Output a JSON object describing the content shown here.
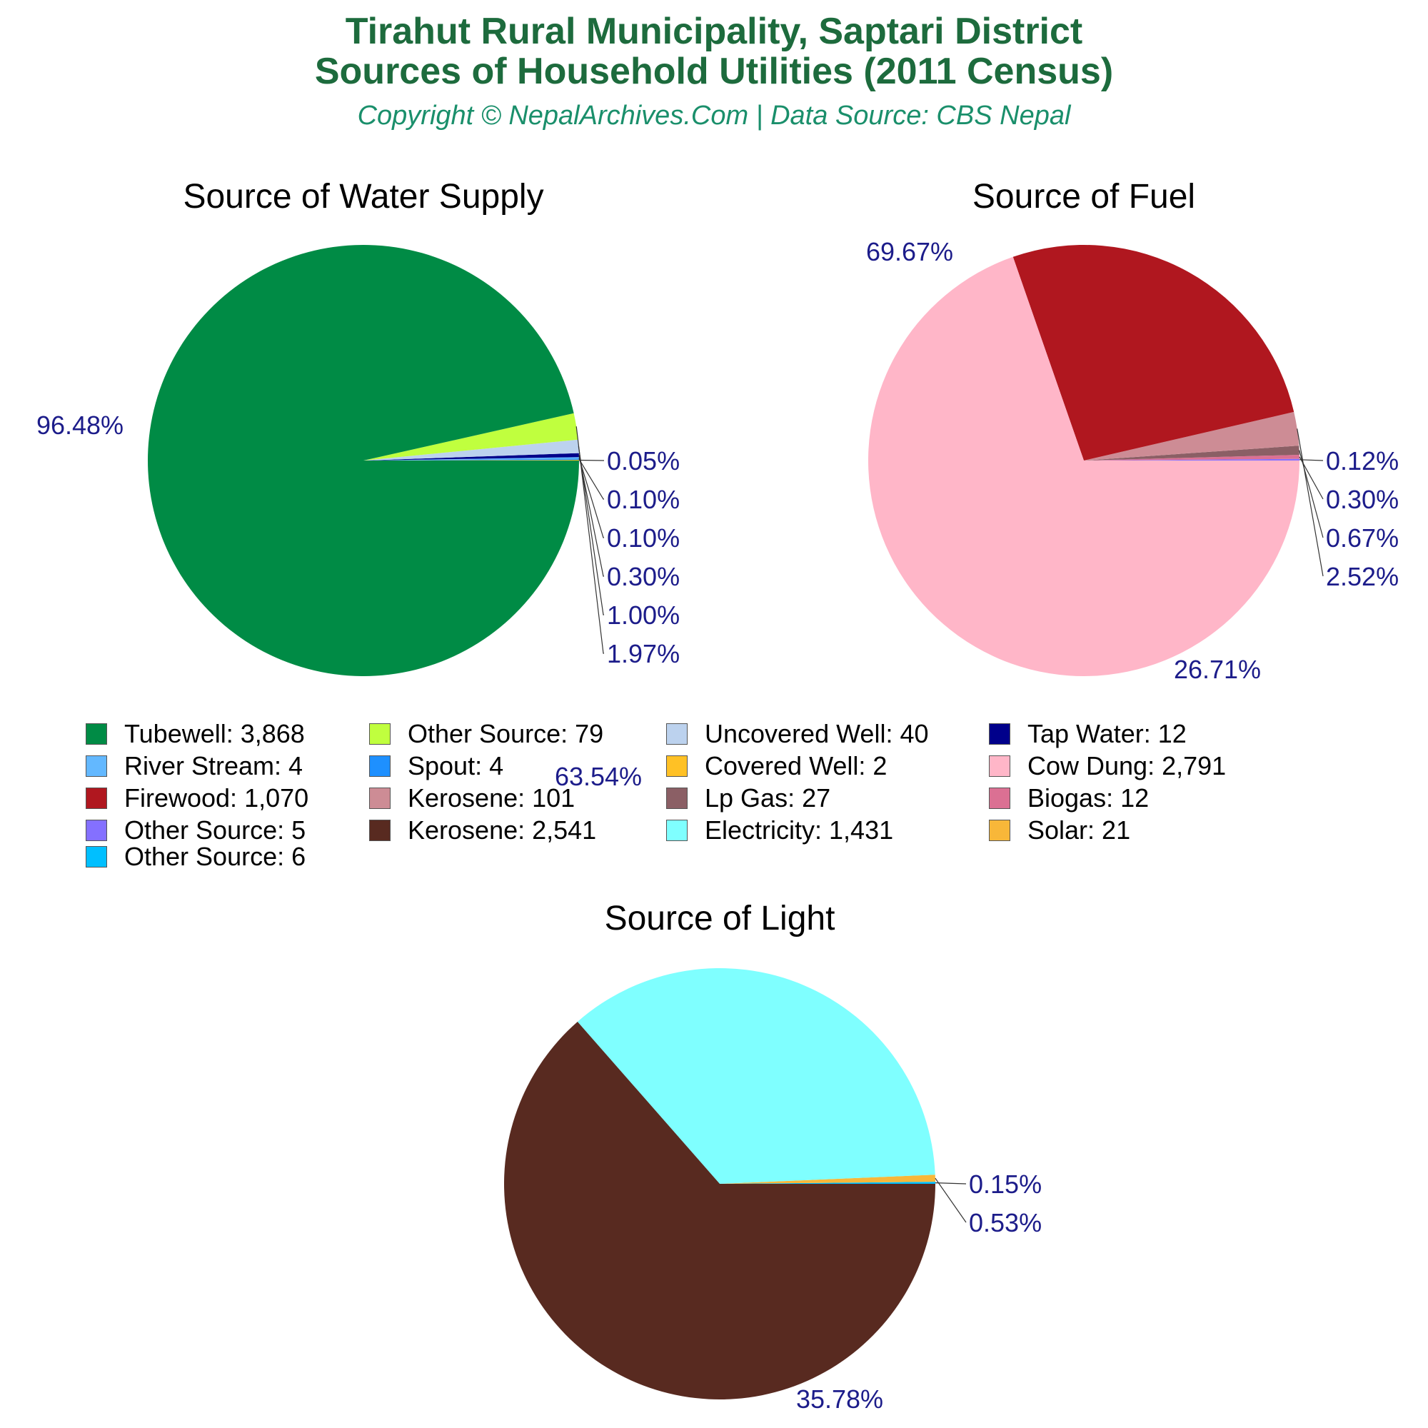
{
  "header": {
    "title_line1": "Tirahut Rural Municipality, Saptari District",
    "title_line2": "Sources of Household Utilities (2011 Census)",
    "subtitle": "Copyright © NepalArchives.Com | Data Source: CBS Nepal"
  },
  "chart_data": [
    {
      "type": "pie",
      "title": "Source of Water Supply",
      "slices": [
        {
          "label": "Tubewell",
          "value": 3868,
          "percent_label": "96.48%",
          "color": "#008b45"
        },
        {
          "label": "Other Source",
          "value": 79,
          "percent_label": "1.97%",
          "color": "#c0ff3e"
        },
        {
          "label": "Uncovered Well",
          "value": 40,
          "percent_label": "1.00%",
          "color": "#bcd2ee"
        },
        {
          "label": "Tap Water",
          "value": 12,
          "percent_label": "0.30%",
          "color": "#00008b"
        },
        {
          "label": "River Stream",
          "value": 4,
          "percent_label": "0.10%",
          "color": "#63b8ff"
        },
        {
          "label": "Spout",
          "value": 4,
          "percent_label": "0.10%",
          "color": "#1e90ff"
        },
        {
          "label": "Covered Well",
          "value": 2,
          "percent_label": "0.05%",
          "color": "#ffc125"
        }
      ]
    },
    {
      "type": "pie",
      "title": "Source of Fuel",
      "slices": [
        {
          "label": "Cow Dung",
          "value": 2791,
          "percent_label": "69.67%",
          "color": "#ffb6c8"
        },
        {
          "label": "Firewood",
          "value": 1070,
          "percent_label": "26.71%",
          "color": "#b0171f"
        },
        {
          "label": "Kerosene",
          "value": 101,
          "percent_label": "2.52%",
          "color": "#cd8c95"
        },
        {
          "label": "Lp Gas",
          "value": 27,
          "percent_label": "0.67%",
          "color": "#8b5f65"
        },
        {
          "label": "Biogas",
          "value": 12,
          "percent_label": "0.30%",
          "color": "#db7093"
        },
        {
          "label": "Other Source",
          "value": 5,
          "percent_label": "0.12%",
          "color": "#8470ff"
        }
      ]
    },
    {
      "type": "pie",
      "title": "Source of Light",
      "slices": [
        {
          "label": "Kerosene",
          "value": 2541,
          "percent_label": "63.54%",
          "color": "#582a20"
        },
        {
          "label": "Electricity",
          "value": 1431,
          "percent_label": "35.78%",
          "color": "#7fffff"
        },
        {
          "label": "Solar",
          "value": 21,
          "percent_label": "0.53%",
          "color": "#f8b739"
        },
        {
          "label": "Other Source",
          "value": 6,
          "percent_label": "0.15%",
          "color": "#00bfff"
        }
      ]
    }
  ],
  "legend": [
    {
      "text": "Tubewell: 3,868",
      "color": "#008b45"
    },
    {
      "text": "Other Source: 79",
      "color": "#c0ff3e"
    },
    {
      "text": "Uncovered Well: 40",
      "color": "#bcd2ee"
    },
    {
      "text": "Tap Water: 12",
      "color": "#00008b"
    },
    {
      "text": "River Stream: 4",
      "color": "#63b8ff"
    },
    {
      "text": "Spout: 4",
      "color": "#1e90ff"
    },
    {
      "text": "Covered Well: 2",
      "color": "#ffc125"
    },
    {
      "text": "Cow Dung: 2,791",
      "color": "#ffb6c8"
    },
    {
      "text": "Firewood: 1,070",
      "color": "#b0171f"
    },
    {
      "text": "Kerosene: 101",
      "color": "#cd8c95"
    },
    {
      "text": "Lp Gas: 27",
      "color": "#8b5f65"
    },
    {
      "text": "Biogas: 12",
      "color": "#db7093"
    },
    {
      "text": "Other Source: 5",
      "color": "#8470ff"
    },
    {
      "text": "Kerosene: 2,541",
      "color": "#582a20"
    },
    {
      "text": "Electricity: 1,431",
      "color": "#7fffff"
    },
    {
      "text": "Solar: 21",
      "color": "#f8b739"
    },
    {
      "text": "Other Source: 6",
      "color": "#00bfff"
    }
  ]
}
